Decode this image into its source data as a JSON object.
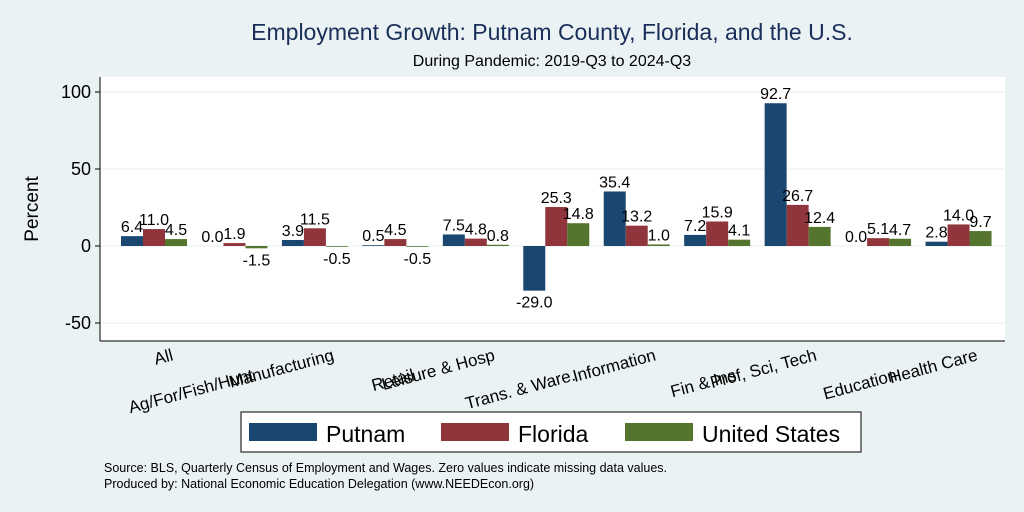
{
  "chart_data": {
    "type": "bar",
    "title": "Employment Growth: Putnam County, Florida, and the U.S.",
    "subtitle": "During Pandemic: 2019-Q3 to 2024-Q3",
    "xlabel": "",
    "ylabel": "Percent",
    "ylim": [
      -60,
      110
    ],
    "yticks": [
      -50,
      0,
      50,
      100
    ],
    "grid": true,
    "legend_position": "bottom",
    "categories": [
      "All",
      "Ag/For/Fish/Hunt",
      "Manufacturing",
      "Retail",
      "Leisure & Hosp",
      "Trans. & Ware.",
      "Information",
      "Fin & Ins",
      "Prof, Sci, Tech",
      "Education",
      "Health Care"
    ],
    "series": [
      {
        "name": "Putnam",
        "color": "#1a476f",
        "values": [
          6.4,
          0.0,
          3.9,
          0.5,
          7.5,
          -29.0,
          35.4,
          7.2,
          92.7,
          0.0,
          2.8
        ]
      },
      {
        "name": "Florida",
        "color": "#90353b",
        "values": [
          11.0,
          1.9,
          11.5,
          4.5,
          4.8,
          25.3,
          13.2,
          15.9,
          26.7,
          5.1,
          14.0
        ]
      },
      {
        "name": "United States",
        "color": "#55752f",
        "values": [
          4.5,
          -1.5,
          -0.5,
          -0.5,
          0.8,
          14.8,
          1.0,
          4.1,
          12.4,
          4.7,
          9.7
        ]
      }
    ],
    "notes": [
      "Source: BLS, Quarterly Census of Employment and Wages. Zero values indicate missing data values.",
      "Produced by: National Economic Education Delegation (www.NEEDEcon.org)"
    ]
  }
}
